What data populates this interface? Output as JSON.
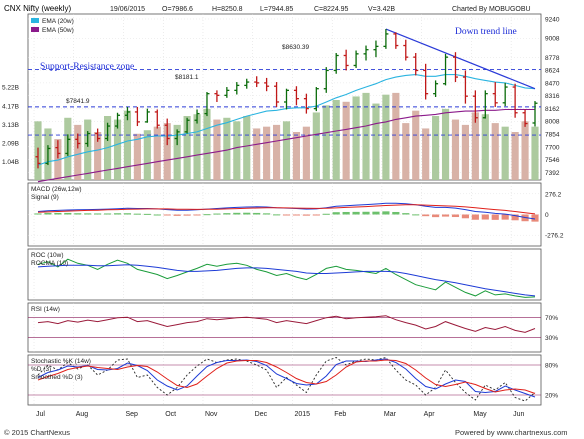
{
  "header": {
    "title": "CNX Nifty (weekly)",
    "date": "19/06/2015",
    "open": "O=7986.6",
    "high": "H=8250.8",
    "low": "L=7944.85",
    "close": "C=8224.95",
    "volume": "V=3.42B",
    "charted_by": "Charted By MOBUGOBU"
  },
  "footer": {
    "left": "© 2015 ChartNexus",
    "right": "Powered by www.chartnexus.com"
  },
  "annotations": {
    "down_trend": "Down trend line",
    "support_resistance": "Support-Resistance zone",
    "level_8630": "$8630.39",
    "level_8181": "$8181.1",
    "level_7841": "$7841.9"
  },
  "chart_data": [
    {
      "type": "ohlc",
      "panel": "price",
      "legend": [
        "EMA (20w)",
        "EMA (50w)"
      ],
      "x_labels": [
        "Jul",
        "Aug",
        "Sep",
        "Oct",
        "Nov",
        "Dec",
        "2015",
        "Feb",
        "Mar",
        "Apr",
        "May",
        "Jun"
      ],
      "y_ticks": [
        "9240",
        "9008",
        "8778",
        "8624",
        "8470",
        "8316",
        "8162",
        "8008",
        "7854",
        "7700",
        "7546",
        "7392"
      ],
      "volume_ticks": [
        "5.22B",
        "4.17B",
        "3.13B",
        "2.09B",
        "1.04B"
      ],
      "ylim": [
        7300,
        9300
      ],
      "hlines": [
        8630.39,
        8181.1,
        7841.9
      ],
      "candles": [
        {
          "o": 7580,
          "h": 7690,
          "l": 7440,
          "c": 7500
        },
        {
          "o": 7500,
          "h": 7720,
          "l": 7480,
          "c": 7680
        },
        {
          "o": 7690,
          "h": 7780,
          "l": 7560,
          "c": 7620
        },
        {
          "o": 7620,
          "h": 7850,
          "l": 7590,
          "c": 7790
        },
        {
          "o": 7790,
          "h": 7860,
          "l": 7680,
          "c": 7740
        },
        {
          "o": 7740,
          "h": 7890,
          "l": 7700,
          "c": 7860
        },
        {
          "o": 7860,
          "h": 7920,
          "l": 7760,
          "c": 7800
        },
        {
          "o": 7800,
          "h": 7990,
          "l": 7770,
          "c": 7950
        },
        {
          "o": 7950,
          "h": 8110,
          "l": 7920,
          "c": 8080
        },
        {
          "o": 8080,
          "h": 8180,
          "l": 8020,
          "c": 8120
        },
        {
          "o": 8120,
          "h": 8180,
          "l": 7950,
          "c": 8000
        },
        {
          "o": 8000,
          "h": 8160,
          "l": 7990,
          "c": 8120
        },
        {
          "o": 8120,
          "h": 8150,
          "l": 7920,
          "c": 7960
        },
        {
          "o": 7960,
          "h": 8040,
          "l": 7720,
          "c": 7800
        },
        {
          "o": 7800,
          "h": 7910,
          "l": 7720,
          "c": 7880
        },
        {
          "o": 7880,
          "h": 8050,
          "l": 7860,
          "c": 8020
        },
        {
          "o": 8020,
          "h": 8150,
          "l": 7980,
          "c": 8100
        },
        {
          "o": 8100,
          "h": 8360,
          "l": 8070,
          "c": 8340
        },
        {
          "o": 8340,
          "h": 8380,
          "l": 8240,
          "c": 8320
        },
        {
          "o": 8320,
          "h": 8420,
          "l": 8290,
          "c": 8380
        },
        {
          "o": 8380,
          "h": 8480,
          "l": 8330,
          "c": 8440
        },
        {
          "o": 8440,
          "h": 8520,
          "l": 8400,
          "c": 8480
        },
        {
          "o": 8480,
          "h": 8550,
          "l": 8420,
          "c": 8470
        },
        {
          "o": 8470,
          "h": 8530,
          "l": 8370,
          "c": 8430
        },
        {
          "o": 8430,
          "h": 8480,
          "l": 8180,
          "c": 8240
        },
        {
          "o": 8240,
          "h": 8400,
          "l": 8150,
          "c": 8380
        },
        {
          "o": 8380,
          "h": 8430,
          "l": 8200,
          "c": 8280
        },
        {
          "o": 8280,
          "h": 8340,
          "l": 8100,
          "c": 8160
        },
        {
          "o": 8160,
          "h": 8420,
          "l": 8130,
          "c": 8400
        },
        {
          "o": 8400,
          "h": 8660,
          "l": 8350,
          "c": 8620
        },
        {
          "o": 8620,
          "h": 8830,
          "l": 8580,
          "c": 8800
        },
        {
          "o": 8800,
          "h": 8870,
          "l": 8620,
          "c": 8680
        },
        {
          "o": 8680,
          "h": 8860,
          "l": 8650,
          "c": 8820
        },
        {
          "o": 8820,
          "h": 8920,
          "l": 8740,
          "c": 8870
        },
        {
          "o": 8870,
          "h": 8980,
          "l": 8780,
          "c": 8910
        },
        {
          "o": 8910,
          "h": 9119,
          "l": 8880,
          "c": 9060
        },
        {
          "o": 9060,
          "h": 9080,
          "l": 8880,
          "c": 8920
        },
        {
          "o": 8920,
          "h": 8990,
          "l": 8740,
          "c": 8780
        },
        {
          "o": 8780,
          "h": 8830,
          "l": 8560,
          "c": 8620
        },
        {
          "o": 8620,
          "h": 8700,
          "l": 8270,
          "c": 8340
        },
        {
          "o": 8340,
          "h": 8500,
          "l": 8300,
          "c": 8460
        },
        {
          "o": 8460,
          "h": 8820,
          "l": 8440,
          "c": 8780
        },
        {
          "o": 8780,
          "h": 8840,
          "l": 8480,
          "c": 8540
        },
        {
          "o": 8540,
          "h": 8620,
          "l": 8220,
          "c": 8310
        },
        {
          "o": 8310,
          "h": 8380,
          "l": 7990,
          "c": 8050
        },
        {
          "o": 8050,
          "h": 8380,
          "l": 8040,
          "c": 8340
        },
        {
          "o": 8340,
          "h": 8480,
          "l": 8180,
          "c": 8230
        },
        {
          "o": 8230,
          "h": 8470,
          "l": 8190,
          "c": 8420
        },
        {
          "o": 8420,
          "h": 8460,
          "l": 8050,
          "c": 8110
        },
        {
          "o": 8110,
          "h": 8150,
          "l": 7940,
          "c": 7980
        },
        {
          "o": 7987,
          "h": 8251,
          "l": 7945,
          "c": 8225
        }
      ],
      "volumes": [
        {
          "v": 3.3,
          "up": true
        },
        {
          "v": 2.9,
          "up": true
        },
        {
          "v": 2.3,
          "up": false
        },
        {
          "v": 3.5,
          "up": true
        },
        {
          "v": 3.1,
          "up": false
        },
        {
          "v": 3.4,
          "up": true
        },
        {
          "v": 2.7,
          "up": false
        },
        {
          "v": 3.6,
          "up": true
        },
        {
          "v": 3.4,
          "up": true
        },
        {
          "v": 3.9,
          "up": true
        },
        {
          "v": 2.6,
          "up": false
        },
        {
          "v": 2.8,
          "up": true
        },
        {
          "v": 3.0,
          "up": false
        },
        {
          "v": 3.2,
          "up": false
        },
        {
          "v": 3.1,
          "up": true
        },
        {
          "v": 3.6,
          "up": true
        },
        {
          "v": 3.7,
          "up": true
        },
        {
          "v": 4.0,
          "up": true
        },
        {
          "v": 3.4,
          "up": false
        },
        {
          "v": 3.5,
          "up": true
        },
        {
          "v": 3.3,
          "up": true
        },
        {
          "v": 3.6,
          "up": true
        },
        {
          "v": 2.9,
          "up": false
        },
        {
          "v": 3.0,
          "up": false
        },
        {
          "v": 3.1,
          "up": false
        },
        {
          "v": 3.3,
          "up": true
        },
        {
          "v": 2.7,
          "up": false
        },
        {
          "v": 3.0,
          "up": false
        },
        {
          "v": 3.8,
          "up": true
        },
        {
          "v": 4.2,
          "up": true
        },
        {
          "v": 4.5,
          "up": true
        },
        {
          "v": 4.4,
          "up": false
        },
        {
          "v": 4.7,
          "up": true
        },
        {
          "v": 4.9,
          "up": true
        },
        {
          "v": 4.3,
          "up": true
        },
        {
          "v": 4.8,
          "up": true
        },
        {
          "v": 4.9,
          "up": false
        },
        {
          "v": 3.2,
          "up": false
        },
        {
          "v": 3.9,
          "up": false
        },
        {
          "v": 2.9,
          "up": false
        },
        {
          "v": 3.6,
          "up": true
        },
        {
          "v": 4.0,
          "up": true
        },
        {
          "v": 3.4,
          "up": false
        },
        {
          "v": 3.1,
          "up": false
        },
        {
          "v": 3.8,
          "up": false
        },
        {
          "v": 3.7,
          "up": true
        },
        {
          "v": 3.2,
          "up": false
        },
        {
          "v": 3.0,
          "up": true
        },
        {
          "v": 2.7,
          "up": false
        },
        {
          "v": 3.3,
          "up": false
        },
        {
          "v": 3.0,
          "up": true
        }
      ],
      "volume_max": 5.4,
      "ema20": [
        7480,
        7520,
        7540,
        7580,
        7610,
        7640,
        7660,
        7690,
        7730,
        7770,
        7790,
        7820,
        7830,
        7830,
        7840,
        7860,
        7880,
        7920,
        7960,
        7990,
        8030,
        8070,
        8100,
        8130,
        8140,
        8160,
        8170,
        8170,
        8190,
        8240,
        8290,
        8330,
        8380,
        8420,
        8460,
        8510,
        8540,
        8560,
        8570,
        8550,
        8550,
        8570,
        8570,
        8550,
        8520,
        8500,
        8480,
        8470,
        8440,
        8410,
        8400
      ],
      "ema50": [
        7280,
        7300,
        7320,
        7340,
        7360,
        7380,
        7400,
        7420,
        7440,
        7460,
        7480,
        7500,
        7520,
        7540,
        7560,
        7580,
        7600,
        7620,
        7640,
        7660,
        7690,
        7710,
        7730,
        7750,
        7770,
        7790,
        7810,
        7830,
        7850,
        7870,
        7890,
        7910,
        7930,
        7950,
        7980,
        8000,
        8030,
        8050,
        8070,
        8080,
        8090,
        8110,
        8120,
        8130,
        8130,
        8140,
        8140,
        8150,
        8150,
        8150,
        8150
      ],
      "trendline": [
        {
          "i": 35,
          "y": 9119
        },
        {
          "i": 50,
          "y": 8400
        }
      ]
    },
    {
      "type": "line",
      "panel": "macd",
      "legend": [
        "MACD (26w,12w)",
        "Signal (9)"
      ],
      "y_ticks": [
        "276.2",
        "0",
        "-276.2"
      ],
      "ylim": [
        -420,
        420
      ],
      "macd": [
        40,
        50,
        55,
        60,
        62,
        66,
        68,
        72,
        78,
        82,
        80,
        80,
        75,
        65,
        58,
        58,
        62,
        72,
        80,
        88,
        95,
        100,
        102,
        100,
        90,
        85,
        80,
        72,
        75,
        90,
        110,
        118,
        125,
        132,
        140,
        150,
        150,
        142,
        130,
        110,
        95,
        95,
        85,
        65,
        40,
        30,
        15,
        5,
        -15,
        -40,
        -60
      ],
      "signal": [
        30,
        35,
        40,
        45,
        50,
        55,
        58,
        62,
        66,
        70,
        72,
        74,
        75,
        74,
        71,
        69,
        68,
        69,
        71,
        75,
        79,
        83,
        87,
        89,
        89,
        88,
        86,
        83,
        81,
        83,
        88,
        94,
        100,
        106,
        113,
        120,
        126,
        129,
        129,
        126,
        120,
        115,
        109,
        101,
        90,
        78,
        66,
        54,
        40,
        24,
        8
      ],
      "histogram": [
        10,
        15,
        15,
        15,
        12,
        11,
        10,
        10,
        12,
        12,
        8,
        6,
        0,
        -9,
        -13,
        -11,
        -6,
        3,
        9,
        13,
        16,
        17,
        15,
        11,
        1,
        -3,
        -6,
        -11,
        -6,
        7,
        22,
        24,
        25,
        26,
        27,
        30,
        24,
        13,
        1,
        -16,
        -25,
        -20,
        -24,
        -36,
        -50,
        -48,
        -51,
        -49,
        -55,
        -64,
        -68
      ]
    },
    {
      "type": "line",
      "panel": "roc",
      "legend": [
        "ROC (10w)",
        "ROCMA (10)"
      ],
      "roc": [
        70,
        75,
        65,
        80,
        72,
        68,
        60,
        70,
        78,
        72,
        60,
        55,
        50,
        42,
        48,
        55,
        62,
        70,
        66,
        70,
        72,
        68,
        60,
        55,
        48,
        52,
        45,
        40,
        50,
        62,
        66,
        60,
        58,
        55,
        52,
        62,
        50,
        40,
        30,
        25,
        20,
        35,
        25,
        15,
        8,
        18,
        10,
        12,
        8,
        5,
        6
      ],
      "rocma": [
        65,
        66,
        67,
        68,
        68,
        68,
        67,
        67,
        68,
        69,
        68,
        66,
        64,
        61,
        58,
        56,
        56,
        57,
        58,
        60,
        62,
        63,
        63,
        62,
        60,
        58,
        56,
        53,
        52,
        52,
        53,
        54,
        55,
        56,
        56,
        56,
        55,
        52,
        48,
        44,
        40,
        37,
        34,
        30,
        26,
        22,
        19,
        16,
        13,
        10,
        8
      ]
    },
    {
      "type": "line",
      "panel": "rsi",
      "legend": [
        "RSI (14w)"
      ],
      "y_ticks": [
        "70%",
        "30%"
      ],
      "ylim": [
        0,
        100
      ],
      "rsi": [
        60,
        62,
        58,
        64,
        61,
        65,
        62,
        66,
        70,
        71,
        62,
        64,
        58,
        52,
        56,
        60,
        62,
        68,
        66,
        68,
        70,
        71,
        69,
        67,
        60,
        64,
        61,
        58,
        64,
        70,
        73,
        68,
        70,
        71,
        72,
        74,
        66,
        60,
        55,
        47,
        52,
        62,
        55,
        48,
        42,
        50,
        46,
        52,
        44,
        40,
        48
      ]
    },
    {
      "type": "line",
      "panel": "stochastic",
      "legend": [
        "Stochastic %K (14w)",
        "%D (3)",
        "Smoothed %D (3)"
      ],
      "y_ticks": [
        "80%",
        "20%"
      ],
      "ylim": [
        0,
        100
      ],
      "k": [
        60,
        80,
        70,
        85,
        72,
        80,
        60,
        70,
        90,
        92,
        55,
        60,
        35,
        20,
        35,
        60,
        78,
        92,
        85,
        90,
        92,
        88,
        80,
        70,
        35,
        55,
        40,
        25,
        60,
        88,
        95,
        80,
        88,
        92,
        90,
        95,
        70,
        50,
        40,
        20,
        35,
        70,
        45,
        25,
        10,
        40,
        30,
        45,
        15,
        8,
        25
      ],
      "d": [
        55,
        65,
        70,
        78,
        76,
        79,
        71,
        70,
        73,
        84,
        79,
        69,
        50,
        38,
        30,
        38,
        58,
        77,
        85,
        89,
        89,
        90,
        87,
        79,
        62,
        53,
        43,
        40,
        42,
        58,
        81,
        88,
        88,
        87,
        90,
        92,
        85,
        72,
        53,
        37,
        32,
        42,
        50,
        47,
        27,
        25,
        27,
        38,
        30,
        23,
        16
      ],
      "sd": [
        50,
        57,
        63,
        71,
        75,
        78,
        75,
        73,
        71,
        76,
        79,
        77,
        66,
        52,
        39,
        35,
        42,
        58,
        73,
        84,
        88,
        89,
        89,
        85,
        76,
        65,
        53,
        45,
        42,
        47,
        60,
        76,
        86,
        88,
        88,
        90,
        89,
        83,
        70,
        54,
        41,
        37,
        41,
        46,
        41,
        33,
        26,
        30,
        32,
        30,
        23
      ]
    }
  ]
}
